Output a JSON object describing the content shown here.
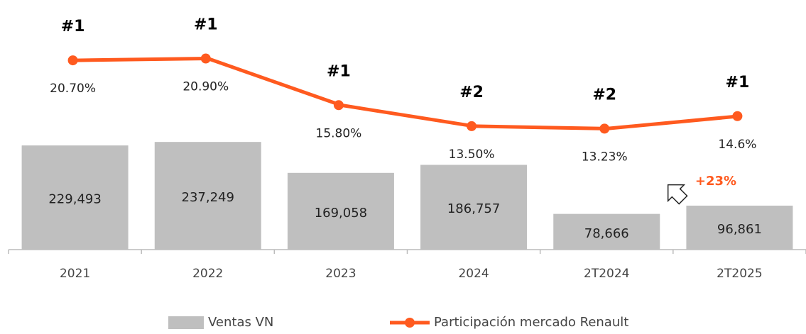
{
  "chart_data": {
    "type": "bar-line",
    "categories": [
      "2021",
      "2022",
      "2023",
      "2024",
      "2T2024",
      "2T2025"
    ],
    "series": [
      {
        "name": "Ventas VN",
        "type": "bar",
        "color": "#bfbfbf",
        "values": [
          229493,
          237249,
          169058,
          186757,
          78666,
          96861
        ],
        "value_labels": [
          "229,493",
          "237,249",
          "169,058",
          "186,757",
          "78,666",
          "96,861"
        ]
      },
      {
        "name": "Participación mercado Renault",
        "type": "line",
        "axis": "y2",
        "color": "#ff5a1f",
        "values": [
          20.7,
          20.9,
          15.8,
          13.5,
          13.23,
          14.6
        ],
        "value_labels": [
          "20.70%",
          "20.90%",
          "15.80%",
          "13.50%",
          "13.23%",
          "14.6%"
        ]
      }
    ],
    "rank_labels": [
      "#1",
      "#1",
      "#1",
      "#2",
      "#2",
      "#1"
    ],
    "annotation": "+23%",
    "ylim": [
      0,
      550000
    ],
    "y2lim": [
      0,
      27.3
    ],
    "legend": "bottom"
  }
}
